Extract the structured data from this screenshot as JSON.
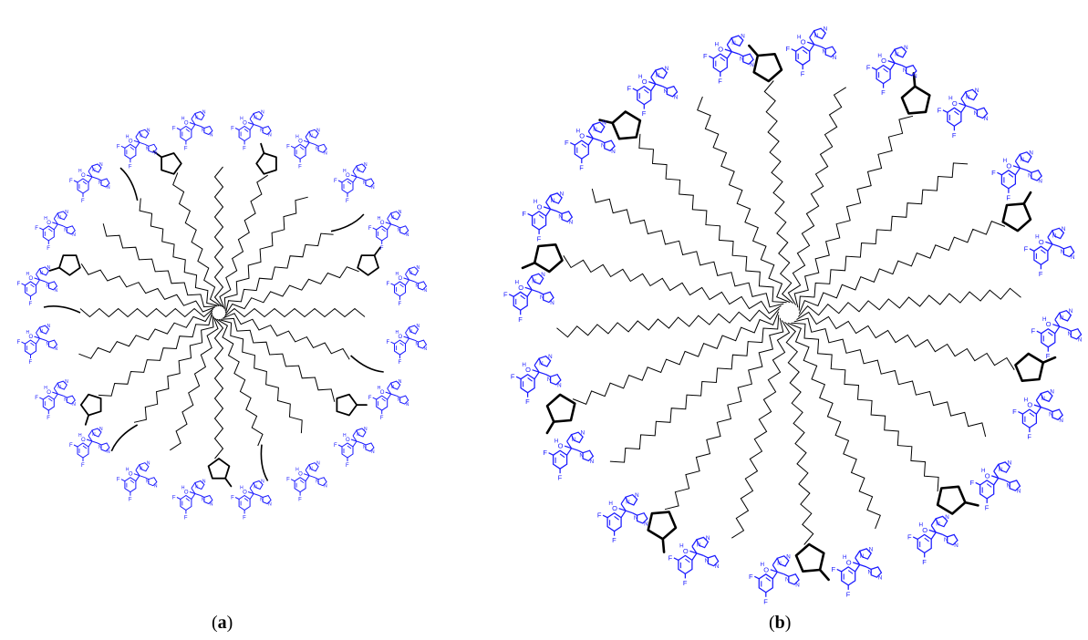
{
  "panels": [
    {
      "id": "a",
      "label": "a",
      "arm_count": 20,
      "chain_segments": 14,
      "cyclopentane_arms": [
        1,
        4,
        7,
        10,
        13,
        16,
        19
      ],
      "lone_arms": [
        3,
        6,
        9,
        12,
        15,
        18
      ],
      "colors": {
        "chain": "#000000",
        "ring": "#000000",
        "drug": "#1a1aff"
      }
    },
    {
      "id": "b",
      "label": "b",
      "arm_count": 20,
      "chain_segments": 22,
      "cyclopentane_arms": [
        0,
        2,
        4,
        6,
        8,
        10,
        12,
        14,
        16,
        18
      ],
      "lone_arms": [],
      "colors": {
        "chain": "#000000",
        "ring": "#000000",
        "drug": "#1a1aff"
      }
    }
  ],
  "drug_atom_labels": {
    "fluorine": "F",
    "hydroxyl": "O",
    "hydrogen": "H",
    "nitrogen": "N"
  }
}
